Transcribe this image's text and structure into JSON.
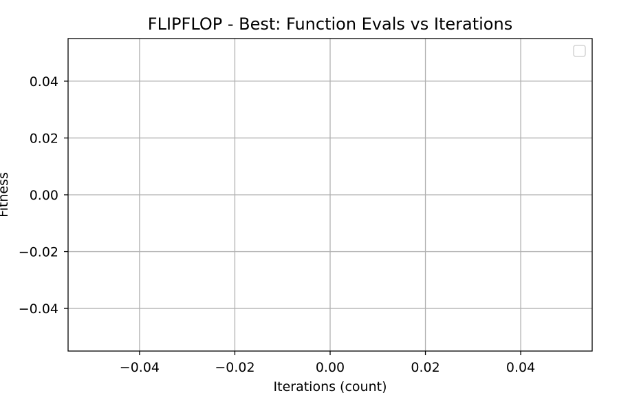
{
  "chart_data": {
    "type": "line",
    "title": "FLIPFLOP - Best: Function Evals vs Iterations",
    "xlabel": "Iterations (count)",
    "ylabel": "Fitness",
    "xlim": [
      -0.055,
      0.055
    ],
    "ylim": [
      -0.055,
      0.055
    ],
    "x_ticks": [
      -0.04,
      -0.02,
      0.0,
      0.02,
      0.04
    ],
    "y_ticks": [
      -0.04,
      -0.02,
      0.0,
      0.02,
      0.04
    ],
    "x_tick_labels": [
      "−0.04",
      "−0.02",
      "0.00",
      "0.02",
      "0.04"
    ],
    "y_tick_labels": [
      "−0.04",
      "−0.02",
      "0.00",
      "0.02",
      "0.04"
    ],
    "grid": true,
    "legend": "upper right",
    "series": [],
    "colors": {
      "grid": "#b0b0b0",
      "axes": "#000000",
      "legend_border": "#cccccc",
      "background": "#ffffff"
    }
  }
}
